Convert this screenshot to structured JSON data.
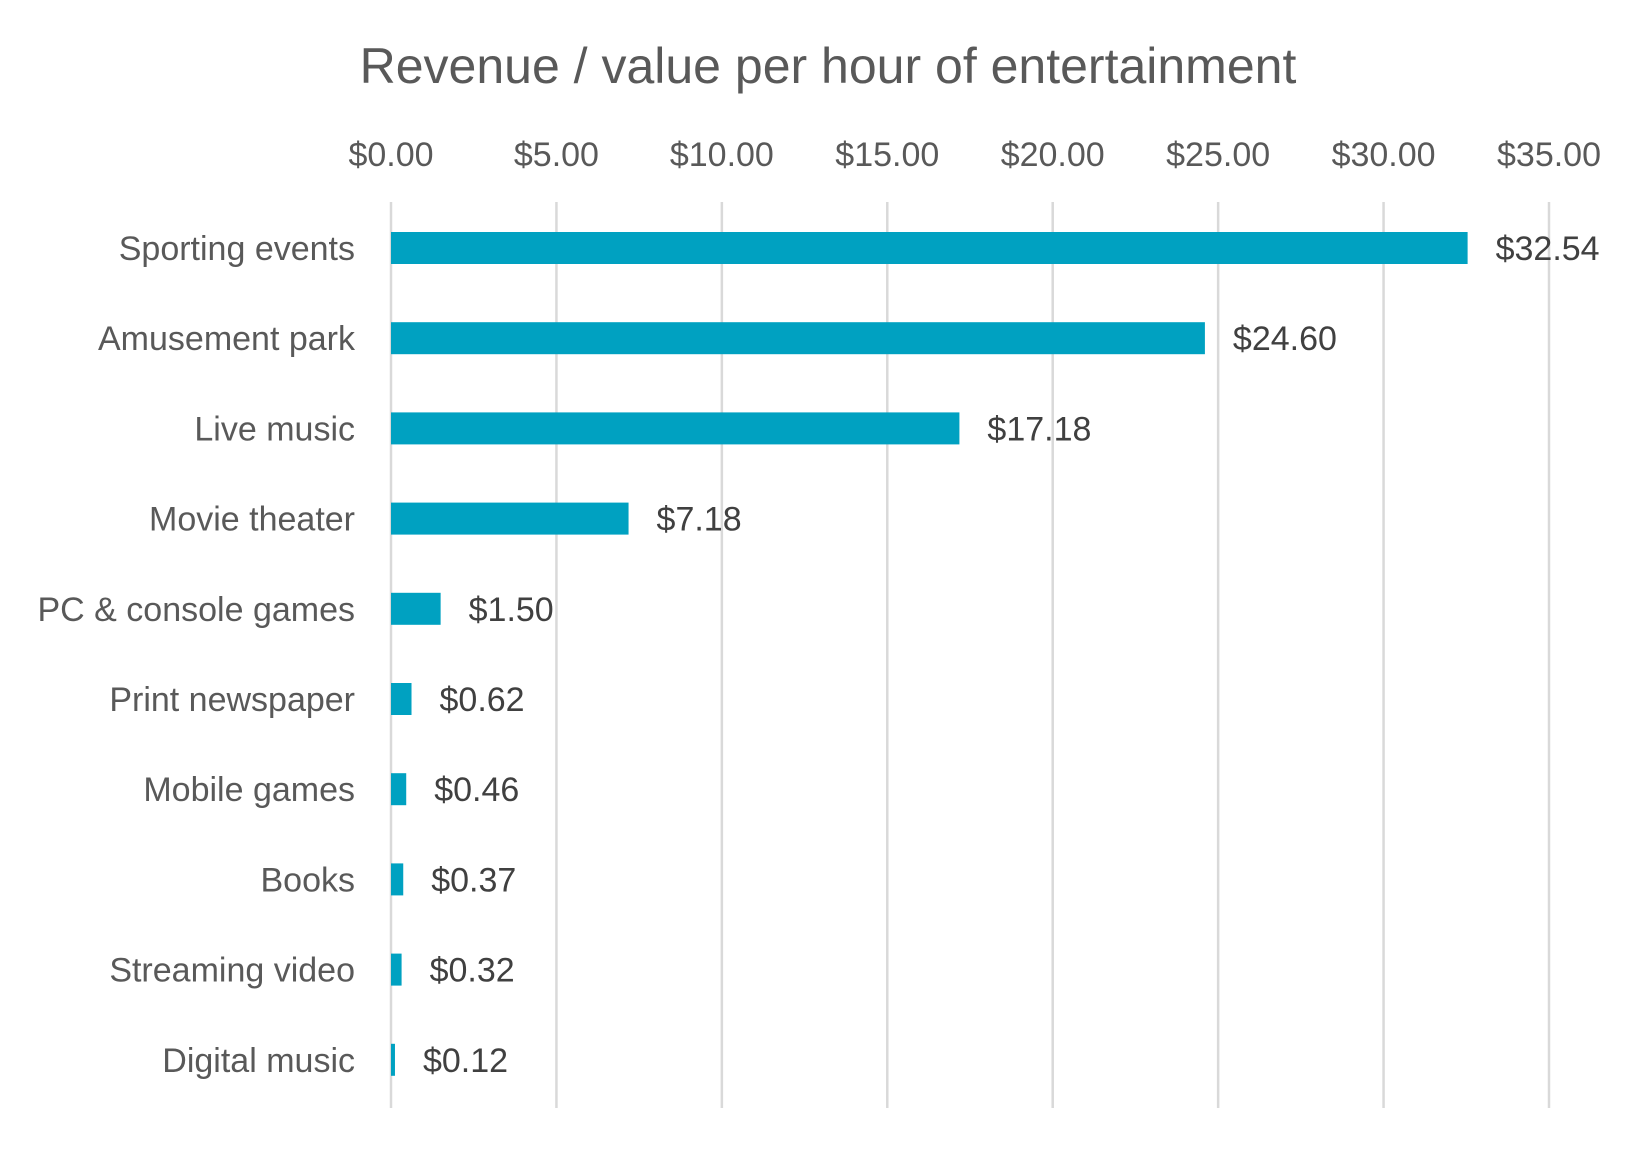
{
  "chart_data": {
    "type": "bar",
    "orientation": "horizontal",
    "title": "Revenue / value per hour of entertainment",
    "xlabel": "",
    "ylabel": "",
    "x_axis_position": "top",
    "xlim": [
      0,
      35
    ],
    "tick_step": 5,
    "x_tick_labels": [
      "$0.00",
      "$5.00",
      "$10.00",
      "$15.00",
      "$20.00",
      "$25.00",
      "$30.00",
      "$35.00"
    ],
    "grid": true,
    "legend": "none",
    "bar_color": "#00A1C1",
    "categories": [
      "Sporting events",
      "Amusement park",
      "Live music",
      "Movie theater",
      "PC & console games",
      "Print newspaper",
      "Mobile games",
      "Books",
      "Streaming video",
      "Digital music"
    ],
    "values": [
      32.54,
      24.6,
      17.18,
      7.18,
      1.5,
      0.62,
      0.46,
      0.37,
      0.32,
      0.12
    ],
    "data_labels": [
      "$32.54",
      "$24.60",
      "$17.18",
      "$7.18",
      "$1.50",
      "$0.62",
      "$0.46",
      "$0.37",
      "$0.32",
      "$0.12"
    ]
  }
}
